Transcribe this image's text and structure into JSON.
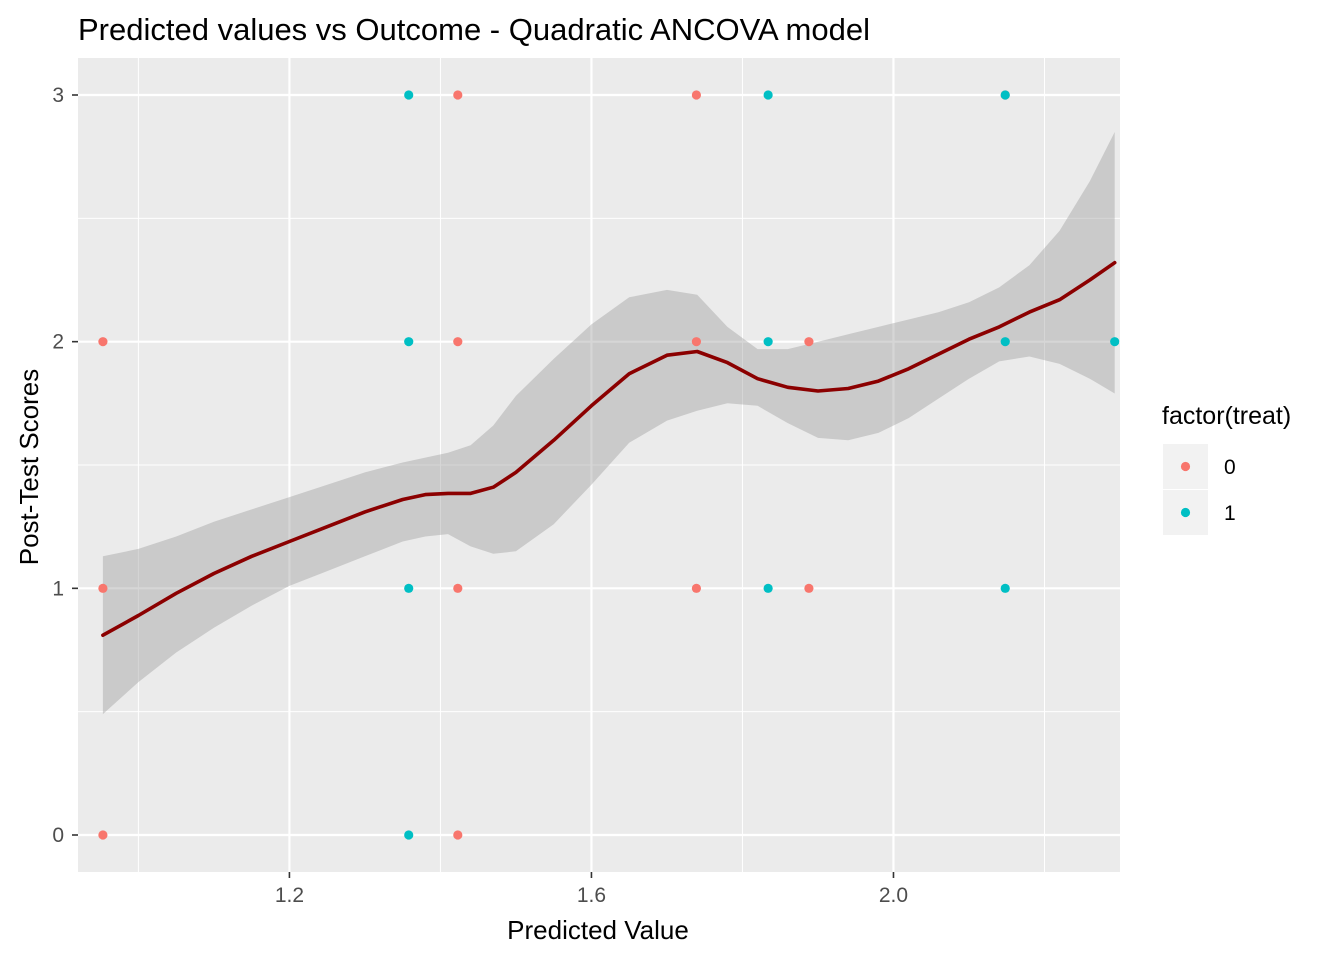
{
  "chart_data": {
    "type": "scatter",
    "title": "Predicted values vs Outcome - Quadratic ANCOVA model",
    "xlabel": "Predicted Value",
    "ylabel": "Post-Test Scores",
    "xlim": [
      0.92,
      2.3
    ],
    "ylim": [
      -0.15,
      3.15
    ],
    "x_ticks": [
      1.2,
      1.6,
      2.0
    ],
    "x_tick_labels": [
      "1.2",
      "1.6",
      "2.0"
    ],
    "y_ticks": [
      0,
      1,
      2,
      3
    ],
    "y_tick_labels": [
      "0",
      "1",
      "2",
      "3"
    ],
    "grid": true,
    "background": "#ebebeb",
    "legend": {
      "title": "factor(treat)",
      "placement": "right",
      "entries": [
        {
          "label": "0",
          "color": "#f8766d"
        },
        {
          "label": "1",
          "color": "#00bfc4"
        }
      ]
    },
    "series": [
      {
        "name": "0",
        "color": "#f8766d",
        "points": [
          {
            "x": 0.953,
            "y": 2
          },
          {
            "x": 0.953,
            "y": 1
          },
          {
            "x": 0.953,
            "y": 0
          },
          {
            "x": 1.423,
            "y": 3
          },
          {
            "x": 1.423,
            "y": 2
          },
          {
            "x": 1.423,
            "y": 1
          },
          {
            "x": 1.423,
            "y": 0
          },
          {
            "x": 1.739,
            "y": 3
          },
          {
            "x": 1.739,
            "y": 2
          },
          {
            "x": 1.739,
            "y": 1
          },
          {
            "x": 1.888,
            "y": 2
          },
          {
            "x": 1.888,
            "y": 1
          },
          {
            "x": 2.148,
            "y": 3
          }
        ]
      },
      {
        "name": "1",
        "color": "#00bfc4",
        "points": [
          {
            "x": 1.358,
            "y": 3
          },
          {
            "x": 1.358,
            "y": 2
          },
          {
            "x": 1.358,
            "y": 1
          },
          {
            "x": 1.358,
            "y": 0
          },
          {
            "x": 1.834,
            "y": 3
          },
          {
            "x": 1.834,
            "y": 2
          },
          {
            "x": 1.834,
            "y": 1
          },
          {
            "x": 2.148,
            "y": 3
          },
          {
            "x": 2.148,
            "y": 2
          },
          {
            "x": 2.148,
            "y": 1
          },
          {
            "x": 2.293,
            "y": 2
          }
        ]
      }
    ],
    "smooth": {
      "color": "#8b0000",
      "band_color": "#999999",
      "points": [
        {
          "x": 0.953,
          "y": 0.81,
          "ymin": 0.49,
          "ymax": 1.13
        },
        {
          "x": 1.0,
          "y": 0.89,
          "ymin": 0.62,
          "ymax": 1.16
        },
        {
          "x": 1.05,
          "y": 0.98,
          "ymin": 0.74,
          "ymax": 1.21
        },
        {
          "x": 1.1,
          "y": 1.06,
          "ymin": 0.84,
          "ymax": 1.27
        },
        {
          "x": 1.15,
          "y": 1.13,
          "ymin": 0.93,
          "ymax": 1.32
        },
        {
          "x": 1.2,
          "y": 1.19,
          "ymin": 1.01,
          "ymax": 1.37
        },
        {
          "x": 1.25,
          "y": 1.25,
          "ymin": 1.07,
          "ymax": 1.42
        },
        {
          "x": 1.3,
          "y": 1.31,
          "ymin": 1.13,
          "ymax": 1.47
        },
        {
          "x": 1.35,
          "y": 1.36,
          "ymin": 1.19,
          "ymax": 1.51
        },
        {
          "x": 1.38,
          "y": 1.38,
          "ymin": 1.21,
          "ymax": 1.53
        },
        {
          "x": 1.41,
          "y": 1.385,
          "ymin": 1.22,
          "ymax": 1.55
        },
        {
          "x": 1.44,
          "y": 1.385,
          "ymin": 1.17,
          "ymax": 1.58
        },
        {
          "x": 1.47,
          "y": 1.41,
          "ymin": 1.14,
          "ymax": 1.66
        },
        {
          "x": 1.5,
          "y": 1.47,
          "ymin": 1.15,
          "ymax": 1.78
        },
        {
          "x": 1.55,
          "y": 1.6,
          "ymin": 1.26,
          "ymax": 1.93
        },
        {
          "x": 1.6,
          "y": 1.74,
          "ymin": 1.42,
          "ymax": 2.07
        },
        {
          "x": 1.65,
          "y": 1.87,
          "ymin": 1.59,
          "ymax": 2.18
        },
        {
          "x": 1.7,
          "y": 1.945,
          "ymin": 1.68,
          "ymax": 2.21
        },
        {
          "x": 1.74,
          "y": 1.96,
          "ymin": 1.72,
          "ymax": 2.19
        },
        {
          "x": 1.78,
          "y": 1.915,
          "ymin": 1.75,
          "ymax": 2.06
        },
        {
          "x": 1.82,
          "y": 1.85,
          "ymin": 1.74,
          "ymax": 1.97
        },
        {
          "x": 1.86,
          "y": 1.815,
          "ymin": 1.67,
          "ymax": 1.97
        },
        {
          "x": 1.9,
          "y": 1.8,
          "ymin": 1.61,
          "ymax": 2.0
        },
        {
          "x": 1.94,
          "y": 1.81,
          "ymin": 1.6,
          "ymax": 2.03
        },
        {
          "x": 1.98,
          "y": 1.84,
          "ymin": 1.63,
          "ymax": 2.06
        },
        {
          "x": 2.02,
          "y": 1.89,
          "ymin": 1.69,
          "ymax": 2.09
        },
        {
          "x": 2.06,
          "y": 1.95,
          "ymin": 1.77,
          "ymax": 2.12
        },
        {
          "x": 2.1,
          "y": 2.01,
          "ymin": 1.85,
          "ymax": 2.16
        },
        {
          "x": 2.14,
          "y": 2.06,
          "ymin": 1.92,
          "ymax": 2.22
        },
        {
          "x": 2.18,
          "y": 2.12,
          "ymin": 1.94,
          "ymax": 2.31
        },
        {
          "x": 2.22,
          "y": 2.17,
          "ymin": 1.91,
          "ymax": 2.45
        },
        {
          "x": 2.26,
          "y": 2.25,
          "ymin": 1.85,
          "ymax": 2.65
        },
        {
          "x": 2.293,
          "y": 2.32,
          "ymin": 1.79,
          "ymax": 2.85
        }
      ]
    }
  }
}
